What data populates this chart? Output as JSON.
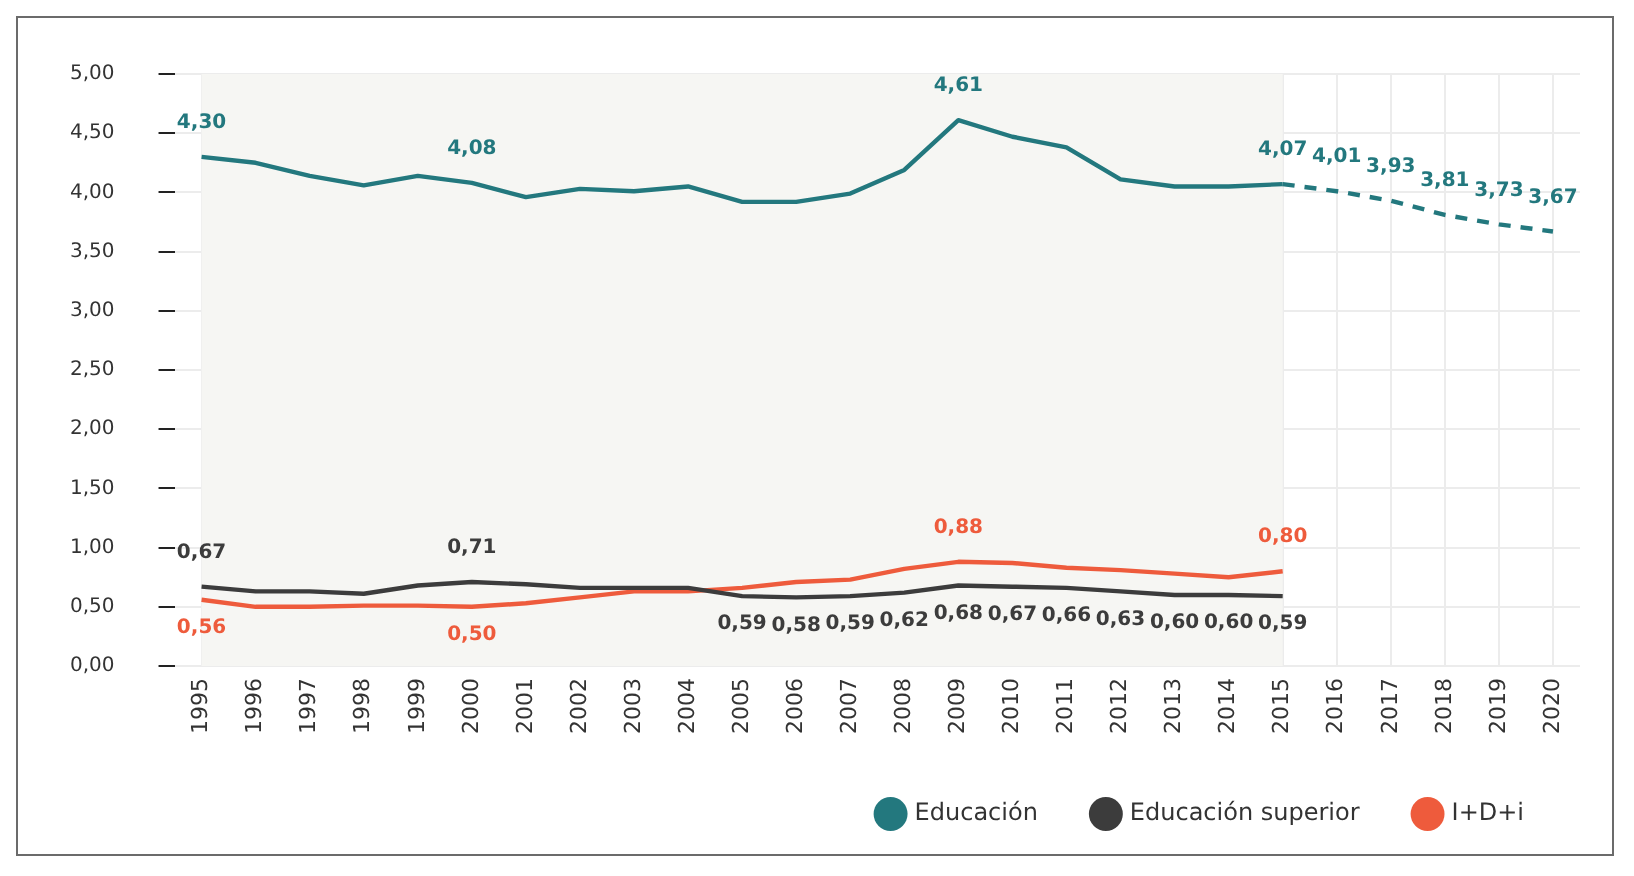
{
  "chart_data": {
    "type": "line",
    "categories": [
      "1995",
      "1996",
      "1997",
      "1998",
      "1999",
      "2000",
      "2001",
      "2002",
      "2003",
      "2004",
      "2005",
      "2006",
      "2007",
      "2008",
      "2009",
      "2010",
      "2011",
      "2012",
      "2013",
      "2014",
      "2015",
      "2016",
      "2017",
      "2018",
      "2019",
      "2020"
    ],
    "series": [
      {
        "name": "Educación",
        "color": "#23787e",
        "values": [
          4.3,
          4.25,
          4.14,
          4.06,
          4.14,
          4.08,
          3.96,
          4.03,
          4.01,
          4.05,
          3.92,
          3.92,
          3.99,
          4.19,
          4.61,
          4.47,
          4.38,
          4.11,
          4.05,
          4.05,
          4.07,
          null,
          null,
          null,
          null,
          null
        ],
        "value_labels": [
          "4,30",
          null,
          null,
          null,
          null,
          "4,08",
          null,
          null,
          null,
          null,
          null,
          null,
          null,
          null,
          "4,61",
          null,
          null,
          null,
          null,
          null,
          "4,07",
          null,
          null,
          null,
          null,
          null
        ]
      },
      {
        "color": "#23787e",
        "line_style": "dashed",
        "values": [
          null,
          null,
          null,
          null,
          null,
          null,
          null,
          null,
          null,
          null,
          null,
          null,
          null,
          null,
          null,
          null,
          null,
          null,
          null,
          null,
          4.07,
          4.01,
          3.93,
          3.81,
          3.73,
          3.67
        ],
        "value_labels": [
          null,
          null,
          null,
          null,
          null,
          null,
          null,
          null,
          null,
          null,
          null,
          null,
          null,
          null,
          null,
          null,
          null,
          null,
          null,
          null,
          null,
          "4,01",
          "3,93",
          "3,81",
          "3,73",
          "3,67"
        ]
      },
      {
        "name": "Educación superior",
        "color": "#3c3c3c",
        "values": [
          0.67,
          0.63,
          0.63,
          0.61,
          0.68,
          0.71,
          0.69,
          0.66,
          0.66,
          0.66,
          0.59,
          0.58,
          0.59,
          0.62,
          0.68,
          0.67,
          0.66,
          0.63,
          0.6,
          0.6,
          0.59,
          null,
          null,
          null,
          null,
          null
        ],
        "value_labels": [
          "0,67",
          null,
          null,
          null,
          null,
          "0,71",
          null,
          null,
          null,
          null,
          "0,59",
          "0,58",
          "0,59",
          "0,62",
          "0,68",
          "0,67",
          "0,66",
          "0,63",
          "0,60",
          "0,60",
          "0,59",
          null,
          null,
          null,
          null,
          null
        ]
      },
      {
        "name": "I+D+i",
        "color": "#ee5b3c",
        "values": [
          0.56,
          0.5,
          0.5,
          0.51,
          0.51,
          0.5,
          0.53,
          0.58,
          0.63,
          0.63,
          0.66,
          0.71,
          0.73,
          0.82,
          0.88,
          0.87,
          0.83,
          0.81,
          0.78,
          0.75,
          0.8,
          null,
          null,
          null,
          null,
          null
        ],
        "value_labels": [
          "0,56",
          null,
          null,
          null,
          null,
          "0,50",
          null,
          null,
          null,
          null,
          null,
          null,
          null,
          null,
          "0,88",
          null,
          null,
          null,
          null,
          null,
          "0,80",
          null,
          null,
          null,
          null,
          null
        ]
      }
    ],
    "ylim": [
      0,
      5
    ],
    "yticks": [
      {
        "value": 0,
        "label": "0,00"
      },
      {
        "value": 0.5,
        "label": "0,50"
      },
      {
        "value": 1,
        "label": "1,00"
      },
      {
        "value": 1.5,
        "label": "1,50"
      },
      {
        "value": 2,
        "label": "2,00"
      },
      {
        "value": 2.5,
        "label": "2,50"
      },
      {
        "value": 3,
        "label": "3,00"
      },
      {
        "value": 3.5,
        "label": "3,50"
      },
      {
        "value": 4,
        "label": "4,00"
      },
      {
        "value": 4.5,
        "label": "4,50"
      },
      {
        "value": 5,
        "label": "5,00"
      }
    ],
    "bands": [
      {
        "axis": "x",
        "from": "1995",
        "to": "2015",
        "color": "#f6f6f3"
      }
    ],
    "grid": true,
    "legend": "bottom right",
    "marker": "none",
    "line_style": "solid"
  }
}
